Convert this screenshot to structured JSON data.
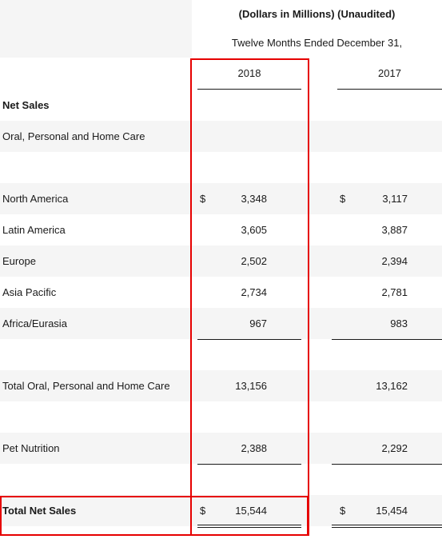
{
  "header": {
    "units": "(Dollars in Millions) (Unaudited)",
    "period": "Twelve Months Ended December 31,",
    "years": [
      "2018",
      "2017"
    ]
  },
  "rows": [
    {
      "label": "Net Sales",
      "bold": true,
      "shade": false
    },
    {
      "label": "Oral, Personal and Home Care",
      "shade": true
    },
    {
      "label": "",
      "shade": false
    },
    {
      "label": "North America",
      "shade": true,
      "dollar": true,
      "v2018": "3,348",
      "v2017": "3,117"
    },
    {
      "label": "Latin America",
      "shade": false,
      "v2018": "3,605",
      "v2017": "3,887"
    },
    {
      "label": "Europe",
      "shade": true,
      "v2018": "2,502",
      "v2017": "2,394"
    },
    {
      "label": "Asia Pacific",
      "shade": false,
      "v2018": "2,734",
      "v2017": "2,781"
    },
    {
      "label": "Africa/Eurasia",
      "shade": true,
      "v2018": "967",
      "v2017": "983",
      "underline": true
    },
    {
      "label": "",
      "shade": false
    },
    {
      "label": "Total Oral, Personal and Home Care",
      "shade": true,
      "v2018": "13,156",
      "v2017": "13,162"
    },
    {
      "label": "",
      "shade": false
    },
    {
      "label": "Pet Nutrition",
      "shade": true,
      "v2018": "2,388",
      "v2017": "2,292",
      "underline": true
    },
    {
      "label": "",
      "shade": false
    },
    {
      "label": "Total Net Sales",
      "bold": true,
      "shade": true,
      "dollar": true,
      "v2018": "15,544",
      "v2017": "15,454",
      "double": true
    }
  ],
  "currency_symbol": "$",
  "highlight_color": "#e60000"
}
